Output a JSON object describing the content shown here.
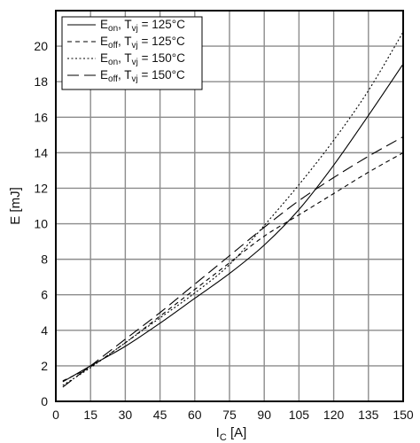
{
  "chart_data": {
    "type": "line",
    "title": "",
    "xlabel": {
      "main": "I",
      "sub": "C",
      "unit": " [A]"
    },
    "ylabel": "E [mJ]",
    "xlim": [
      0,
      150
    ],
    "ylim": [
      0,
      22
    ],
    "xticks": [
      0,
      15,
      30,
      45,
      60,
      75,
      90,
      105,
      120,
      135,
      150
    ],
    "yticks": [
      0,
      2,
      4,
      6,
      8,
      10,
      12,
      14,
      16,
      18,
      20
    ],
    "grid": true,
    "legend_position": "top-left",
    "series": [
      {
        "id": "eon125",
        "legend": {
          "main": "E",
          "sub": "on",
          "mid": ", T",
          "sub2": "vj",
          "tail": " = 125°C"
        },
        "dash": "solid",
        "points": [
          [
            3,
            1.1
          ],
          [
            15,
            2.0
          ],
          [
            30,
            3.1
          ],
          [
            45,
            4.4
          ],
          [
            60,
            5.8
          ],
          [
            75,
            7.2
          ],
          [
            90,
            8.8
          ],
          [
            105,
            10.8
          ],
          [
            120,
            13.3
          ],
          [
            135,
            16.1
          ],
          [
            150,
            19.0
          ]
        ]
      },
      {
        "id": "eoff125",
        "legend": {
          "main": "E",
          "sub": "off",
          "mid": ", T",
          "sub2": "vj",
          "tail": " = 125°C"
        },
        "dash": "short",
        "points": [
          [
            3,
            1.15
          ],
          [
            15,
            1.95
          ],
          [
            30,
            3.3
          ],
          [
            45,
            4.8
          ],
          [
            60,
            6.3
          ],
          [
            75,
            7.8
          ],
          [
            90,
            9.3
          ],
          [
            105,
            10.5
          ],
          [
            120,
            11.7
          ],
          [
            135,
            12.9
          ],
          [
            150,
            14.0
          ]
        ]
      },
      {
        "id": "eon150",
        "legend": {
          "main": "E",
          "sub": "on",
          "mid": ", T",
          "sub2": "vj",
          "tail": " = 150°C"
        },
        "dash": "dotted",
        "points": [
          [
            3,
            0.9
          ],
          [
            15,
            1.9
          ],
          [
            30,
            3.3
          ],
          [
            45,
            4.7
          ],
          [
            60,
            6.1
          ],
          [
            75,
            7.7
          ],
          [
            90,
            9.9
          ],
          [
            105,
            12.2
          ],
          [
            120,
            14.7
          ],
          [
            135,
            17.5
          ],
          [
            150,
            20.8
          ]
        ]
      },
      {
        "id": "eoff150",
        "legend": {
          "main": "E",
          "sub": "off",
          "mid": ", T",
          "sub2": "vj",
          "tail": " = 150°C"
        },
        "dash": "long",
        "points": [
          [
            3,
            0.8
          ],
          [
            15,
            2.0
          ],
          [
            30,
            3.5
          ],
          [
            45,
            5.0
          ],
          [
            60,
            6.6
          ],
          [
            75,
            8.2
          ],
          [
            90,
            9.8
          ],
          [
            105,
            11.3
          ],
          [
            120,
            12.6
          ],
          [
            135,
            13.8
          ],
          [
            150,
            14.9
          ]
        ]
      }
    ]
  }
}
